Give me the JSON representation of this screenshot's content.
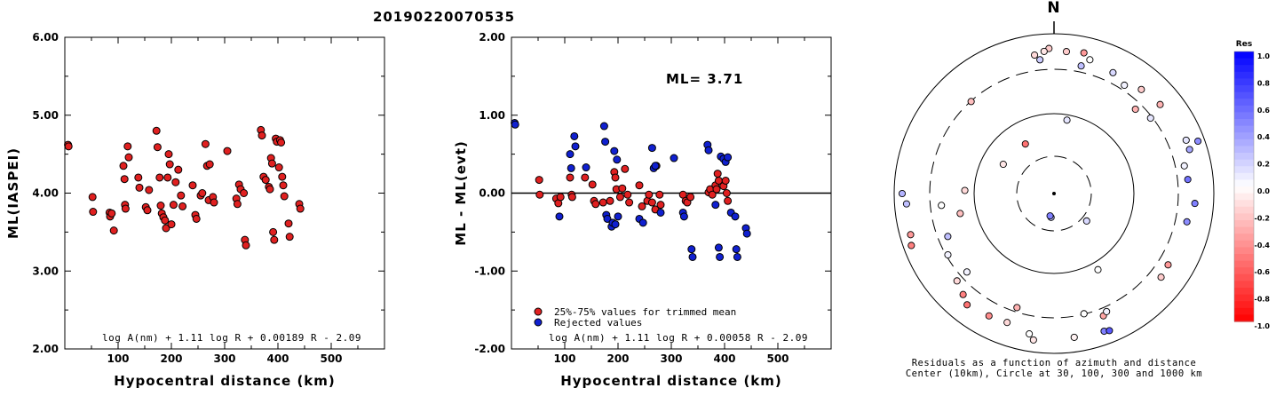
{
  "title": "20190220070535",
  "chart_data": [
    {
      "type": "scatter",
      "ylabel": "ML(IASPEI)",
      "xlabel": "Hypocentral distance (km)",
      "xlim": [
        0,
        600
      ],
      "ylim": [
        2.0,
        6.0
      ],
      "xticks": [
        "100",
        "200",
        "300",
        "400",
        "500"
      ],
      "yticks": [
        "2.00",
        "3.00",
        "4.00",
        "5.00",
        "6.00"
      ],
      "formula": "log A(nm) + 1.11 log R + 0.00189 R - 2.09",
      "marker_color": "#e02020",
      "points": [
        [
          6,
          4.62
        ],
        [
          7,
          4.6
        ],
        [
          52,
          3.95
        ],
        [
          53,
          3.76
        ],
        [
          84,
          3.75
        ],
        [
          85,
          3.7
        ],
        [
          88,
          3.74
        ],
        [
          92,
          3.52
        ],
        [
          110,
          4.35
        ],
        [
          112,
          4.18
        ],
        [
          113,
          3.85
        ],
        [
          114,
          3.8
        ],
        [
          118,
          4.6
        ],
        [
          120,
          4.46
        ],
        [
          138,
          4.2
        ],
        [
          140,
          4.07
        ],
        [
          152,
          3.82
        ],
        [
          155,
          3.78
        ],
        [
          158,
          4.04
        ],
        [
          172,
          4.8
        ],
        [
          174,
          4.59
        ],
        [
          178,
          4.2
        ],
        [
          180,
          3.84
        ],
        [
          182,
          3.74
        ],
        [
          185,
          3.69
        ],
        [
          188,
          3.65
        ],
        [
          190,
          3.55
        ],
        [
          193,
          4.2
        ],
        [
          195,
          4.5
        ],
        [
          197,
          4.37
        ],
        [
          200,
          3.6
        ],
        [
          204,
          3.85
        ],
        [
          208,
          4.14
        ],
        [
          213,
          4.3
        ],
        [
          218,
          3.97
        ],
        [
          221,
          3.83
        ],
        [
          240,
          4.1
        ],
        [
          245,
          3.72
        ],
        [
          247,
          3.67
        ],
        [
          255,
          3.97
        ],
        [
          258,
          4.0
        ],
        [
          264,
          4.63
        ],
        [
          267,
          4.35
        ],
        [
          270,
          3.91
        ],
        [
          272,
          4.37
        ],
        [
          278,
          3.95
        ],
        [
          280,
          3.88
        ],
        [
          305,
          4.54
        ],
        [
          322,
          3.93
        ],
        [
          324,
          3.86
        ],
        [
          327,
          4.11
        ],
        [
          330,
          4.05
        ],
        [
          336,
          4.0
        ],
        [
          338,
          3.4
        ],
        [
          340,
          3.33
        ],
        [
          368,
          4.81
        ],
        [
          370,
          4.74
        ],
        [
          373,
          4.21
        ],
        [
          377,
          4.17
        ],
        [
          383,
          4.08
        ],
        [
          385,
          4.05
        ],
        [
          387,
          4.45
        ],
        [
          389,
          4.38
        ],
        [
          391,
          3.5
        ],
        [
          393,
          3.4
        ],
        [
          396,
          4.7
        ],
        [
          398,
          4.66
        ],
        [
          402,
          4.33
        ],
        [
          404,
          4.68
        ],
        [
          406,
          4.65
        ],
        [
          408,
          4.21
        ],
        [
          410,
          4.1
        ],
        [
          412,
          3.96
        ],
        [
          420,
          3.61
        ],
        [
          422,
          3.44
        ],
        [
          440,
          3.86
        ],
        [
          442,
          3.8
        ]
      ]
    },
    {
      "type": "scatter",
      "ylabel": "ML - ML(evt)",
      "xlabel": "Hypocentral distance (km)",
      "xlim": [
        0,
        600
      ],
      "ylim": [
        -2.0,
        2.0
      ],
      "xticks": [
        "100",
        "200",
        "300",
        "400",
        "500"
      ],
      "yticks": [
        "-2.00",
        "-1.00",
        "0.00",
        "1.00",
        "2.00"
      ],
      "annotation": "ML= 3.71",
      "formula": "log A(nm) + 1.11 log R + 0.00058 R - 2.09",
      "legend": [
        {
          "label": "25%-75% values for trimmed mean",
          "color": "#e02020"
        },
        {
          "label": "Rejected values",
          "color": "#1020d0"
        }
      ],
      "kept_color": "#e02020",
      "rejected_color": "#1020d0",
      "kept": [
        [
          52,
          0.17
        ],
        [
          53,
          -0.02
        ],
        [
          84,
          -0.07
        ],
        [
          88,
          -0.13
        ],
        [
          92,
          -0.05
        ],
        [
          110,
          0.2
        ],
        [
          113,
          -0.02
        ],
        [
          114,
          -0.05
        ],
        [
          138,
          0.2
        ],
        [
          152,
          0.11
        ],
        [
          155,
          -0.1
        ],
        [
          158,
          -0.14
        ],
        [
          172,
          -0.12
        ],
        [
          185,
          -0.1
        ],
        [
          193,
          0.27
        ],
        [
          195,
          0.2
        ],
        [
          197,
          0.05
        ],
        [
          204,
          -0.05
        ],
        [
          208,
          0.06
        ],
        [
          213,
          0.31
        ],
        [
          218,
          -0.02
        ],
        [
          221,
          -0.12
        ],
        [
          240,
          0.1
        ],
        [
          245,
          -0.17
        ],
        [
          255,
          -0.1
        ],
        [
          258,
          -0.02
        ],
        [
          264,
          -0.12
        ],
        [
          270,
          -0.21
        ],
        [
          272,
          0.35
        ],
        [
          278,
          -0.02
        ],
        [
          280,
          -0.15
        ],
        [
          322,
          -0.02
        ],
        [
          327,
          -0.1
        ],
        [
          330,
          -0.12
        ],
        [
          336,
          -0.05
        ],
        [
          370,
          0.01
        ],
        [
          373,
          0.05
        ],
        [
          377,
          -0.02
        ],
        [
          383,
          0.1
        ],
        [
          385,
          0.05
        ],
        [
          387,
          0.25
        ],
        [
          389,
          0.16
        ],
        [
          398,
          0.09
        ],
        [
          402,
          0.16
        ],
        [
          404,
          0.0
        ],
        [
          406,
          -0.1
        ]
      ],
      "rejected": [
        [
          6,
          0.9
        ],
        [
          7,
          0.88
        ],
        [
          90,
          -0.3
        ],
        [
          110,
          0.5
        ],
        [
          112,
          0.32
        ],
        [
          118,
          0.73
        ],
        [
          120,
          0.6
        ],
        [
          140,
          0.33
        ],
        [
          174,
          0.86
        ],
        [
          176,
          0.66
        ],
        [
          178,
          -0.28
        ],
        [
          180,
          -0.33
        ],
        [
          188,
          -0.43
        ],
        [
          190,
          -0.38
        ],
        [
          193,
          0.54
        ],
        [
          195,
          -0.4
        ],
        [
          198,
          0.43
        ],
        [
          200,
          -0.3
        ],
        [
          240,
          -0.33
        ],
        [
          247,
          -0.38
        ],
        [
          264,
          0.58
        ],
        [
          267,
          0.32
        ],
        [
          270,
          0.35
        ],
        [
          280,
          -0.25
        ],
        [
          305,
          0.45
        ],
        [
          322,
          -0.25
        ],
        [
          324,
          -0.3
        ],
        [
          338,
          -0.72
        ],
        [
          340,
          -0.82
        ],
        [
          368,
          0.62
        ],
        [
          370,
          0.55
        ],
        [
          383,
          -0.15
        ],
        [
          389,
          -0.7
        ],
        [
          391,
          -0.82
        ],
        [
          393,
          0.47
        ],
        [
          398,
          0.44
        ],
        [
          402,
          0.4
        ],
        [
          406,
          0.46
        ],
        [
          412,
          -0.25
        ],
        [
          420,
          -0.3
        ],
        [
          422,
          -0.72
        ],
        [
          424,
          -0.82
        ],
        [
          440,
          -0.45
        ],
        [
          442,
          -0.52
        ]
      ]
    },
    {
      "type": "polar-scatter",
      "north_label": "N",
      "caption_line1": "Residuals as a function of azimuth and distance",
      "caption_line2": "Center (10km), Circle at 30, 100, 300 and 1000 km",
      "colorbar_title": "Res",
      "colorbar_ticks": [
        "1.0",
        "0.8",
        "0.6",
        "0.4",
        "0.2",
        "0.0",
        "-0.2",
        "-0.4",
        "-0.6",
        "-0.8",
        "-1.0"
      ],
      "colorbar_range": [
        -1.0,
        1.0
      ],
      "colors": {
        "positive": "#0000ff",
        "negative": "#ff0000",
        "neutral": "#ffffff"
      },
      "points": [
        [
          187,
          0.9,
          0.25
        ],
        [
          190,
          0.85,
          0.5
        ],
        [
          10,
          2.8,
          0.1
        ],
        [
          52,
          4.6,
          0.1
        ],
        [
          130,
          1.6,
          0.15
        ],
        [
          300,
          2.2,
          -0.1
        ],
        [
          330,
          2.15,
          -0.55
        ],
        [
          318,
          4.65,
          -0.25
        ],
        [
          264,
          4.25,
          0.0
        ],
        [
          272,
          3.35,
          -0.15
        ],
        [
          258,
          3.6,
          -0.25
        ],
        [
          248,
          4.3,
          0.25
        ],
        [
          240,
          4.6,
          0.05
        ],
        [
          270,
          5.7,
          0.3
        ],
        [
          266,
          5.55,
          0.25
        ],
        [
          254,
          5.6,
          -0.4
        ],
        [
          250,
          5.7,
          -0.5
        ],
        [
          228,
          4.4,
          0.05
        ],
        [
          228,
          4.9,
          -0.15
        ],
        [
          222,
          5.1,
          -0.5
        ],
        [
          218,
          5.3,
          -0.55
        ],
        [
          208,
          5.2,
          -0.45
        ],
        [
          198,
          4.5,
          -0.3
        ],
        [
          200,
          5.15,
          -0.15
        ],
        [
          190,
          5.35,
          0.0
        ],
        [
          188,
          5.55,
          -0.1
        ],
        [
          172,
          5.45,
          -0.05
        ],
        [
          160,
          5.5,
          0.5
        ],
        [
          158,
          5.55,
          0.65
        ],
        [
          166,
          4.65,
          0.0
        ],
        [
          158,
          4.95,
          -0.35
        ],
        [
          156,
          4.85,
          0.05
        ],
        [
          150,
          3.3,
          0.0
        ],
        [
          128,
          5.1,
          -0.2
        ],
        [
          122,
          5.05,
          -0.4
        ],
        [
          102,
          5.1,
          0.45
        ],
        [
          94,
          5.3,
          0.5
        ],
        [
          72,
          5.35,
          0.35
        ],
        [
          70,
          5.75,
          0.45
        ],
        [
          68,
          5.35,
          0.1
        ],
        [
          78,
          5.0,
          0.05
        ],
        [
          84,
          5.05,
          0.55
        ],
        [
          50,
          5.2,
          -0.3
        ],
        [
          44,
          4.4,
          -0.3
        ],
        [
          40,
          5.1,
          -0.2
        ],
        [
          33,
          4.85,
          0.05
        ],
        [
          26,
          5.05,
          0.15
        ],
        [
          354,
          5.05,
          0.2
        ],
        [
          352,
          5.25,
          -0.15
        ],
        [
          358,
          5.45,
          -0.2
        ],
        [
          356,
          5.35,
          -0.1
        ],
        [
          15,
          5.2,
          0.0
        ],
        [
          12,
          5.4,
          -0.4
        ],
        [
          5,
          5.35,
          -0.2
        ],
        [
          12,
          4.9,
          0.25
        ]
      ]
    }
  ]
}
